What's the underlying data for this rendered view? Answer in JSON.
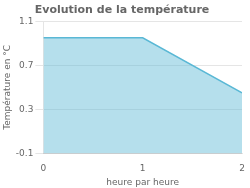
{
  "chart_data": {
    "type": "area",
    "title": "Evolution de la température",
    "x_label": "heure par heure",
    "y_label": "Température en °C",
    "x": [
      0,
      1,
      2
    ],
    "series": [
      {
        "name": "Température",
        "color": "#5ab8d5",
        "values": [
          0.95,
          0.95,
          0.45
        ]
      }
    ],
    "xlim": [
      0,
      2
    ],
    "xticks": [
      0,
      1,
      2
    ],
    "ylim": [
      -0.1,
      1.1
    ],
    "yticks": [
      -0.1,
      0.3,
      0.7,
      1.1
    ],
    "grid": true
  }
}
